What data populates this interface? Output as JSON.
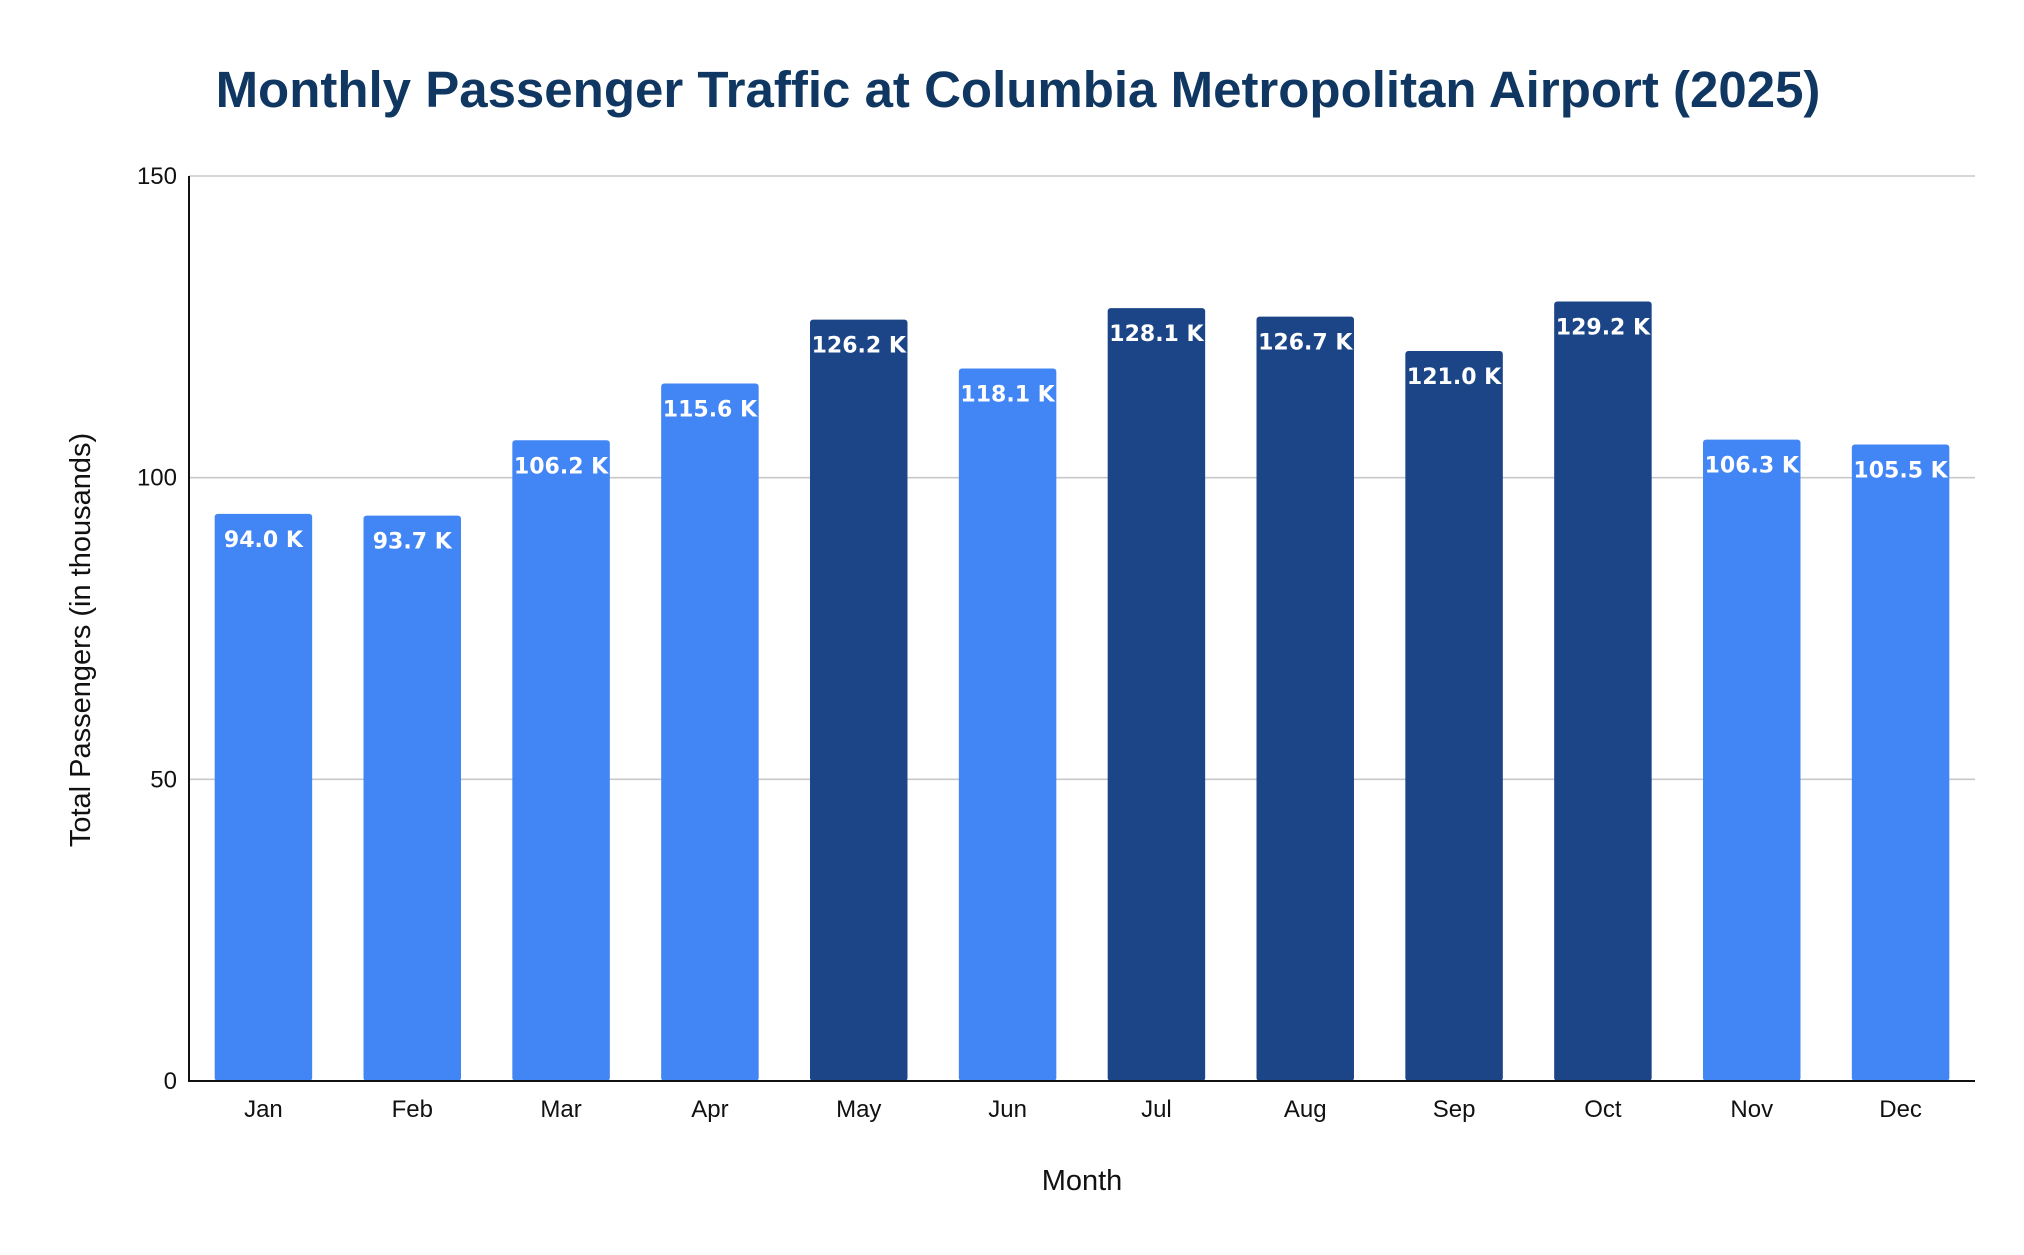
{
  "chart_data": {
    "type": "bar",
    "title": "Monthly Passenger Traffic at Columbia Metropolitan Airport (2025)",
    "xlabel": "Month",
    "ylabel": "Total Passengers (in thousands)",
    "categories": [
      "Jan",
      "Feb",
      "Mar",
      "Apr",
      "May",
      "Jun",
      "Jul",
      "Aug",
      "Sep",
      "Oct",
      "Nov",
      "Dec"
    ],
    "values": [
      94.0,
      93.7,
      106.2,
      115.6,
      126.2,
      118.1,
      128.1,
      126.7,
      121.0,
      129.2,
      106.3,
      105.5
    ],
    "data_labels": [
      "94.0 K",
      "93.7 K",
      "106.2 K",
      "115.6 K",
      "126.2 K",
      "118.1 K",
      "128.1 K",
      "126.7 K",
      "121.0 K",
      "129.2 K",
      "106.3 K",
      "105.5 K"
    ],
    "ylim": [
      0,
      150
    ],
    "yticks": [
      0,
      50,
      100,
      150
    ],
    "ytick_labels": [
      "0",
      "50",
      "100",
      "150"
    ],
    "grid": true,
    "legend": "none",
    "highlight_threshold": 120,
    "colors": {
      "bar": "#4285f4",
      "bar_highlight": "#1c4587",
      "title": "#0f3761"
    }
  }
}
